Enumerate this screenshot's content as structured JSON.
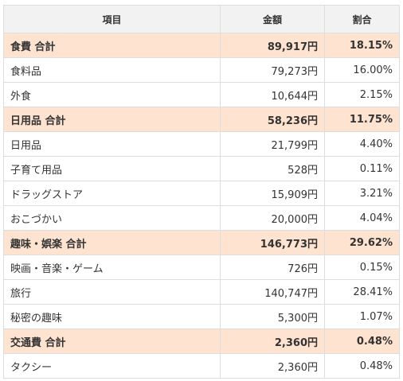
{
  "table": {
    "headers": {
      "item": "項目",
      "amount": "金額",
      "ratio": "割合"
    },
    "rows": [
      {
        "type": "subtotal",
        "label": "食費 合計",
        "amount": "89,917円",
        "ratio": "18.15%"
      },
      {
        "type": "item",
        "label": "食料品",
        "amount": "79,273円",
        "ratio": "16.00%"
      },
      {
        "type": "item",
        "label": "外食",
        "amount": "10,644円",
        "ratio": "2.15%"
      },
      {
        "type": "subtotal",
        "label": "日用品 合計",
        "amount": "58,236円",
        "ratio": "11.75%"
      },
      {
        "type": "item",
        "label": "日用品",
        "amount": "21,799円",
        "ratio": "4.40%"
      },
      {
        "type": "item",
        "label": "子育て用品",
        "amount": "528円",
        "ratio": "0.11%"
      },
      {
        "type": "item",
        "label": "ドラッグストア",
        "amount": "15,909円",
        "ratio": "3.21%"
      },
      {
        "type": "item",
        "label": "おこづかい",
        "amount": "20,000円",
        "ratio": "4.04%"
      },
      {
        "type": "subtotal",
        "label": "趣味・娯楽 合計",
        "amount": "146,773円",
        "ratio": "29.62%"
      },
      {
        "type": "item",
        "label": "映画・音楽・ゲーム",
        "amount": "726円",
        "ratio": "0.15%"
      },
      {
        "type": "item",
        "label": "旅行",
        "amount": "140,747円",
        "ratio": "28.41%"
      },
      {
        "type": "item",
        "label": "秘密の趣味",
        "amount": "5,300円",
        "ratio": "1.07%"
      },
      {
        "type": "subtotal",
        "label": "交通費 合計",
        "amount": "2,360円",
        "ratio": "0.48%"
      },
      {
        "type": "item",
        "label": "タクシー",
        "amount": "2,360円",
        "ratio": "0.48%"
      }
    ]
  },
  "colors": {
    "subtotal_bg": "#fde3d0",
    "header_bg": "#f2f2f2",
    "border": "#dddddd",
    "text": "#333333"
  }
}
